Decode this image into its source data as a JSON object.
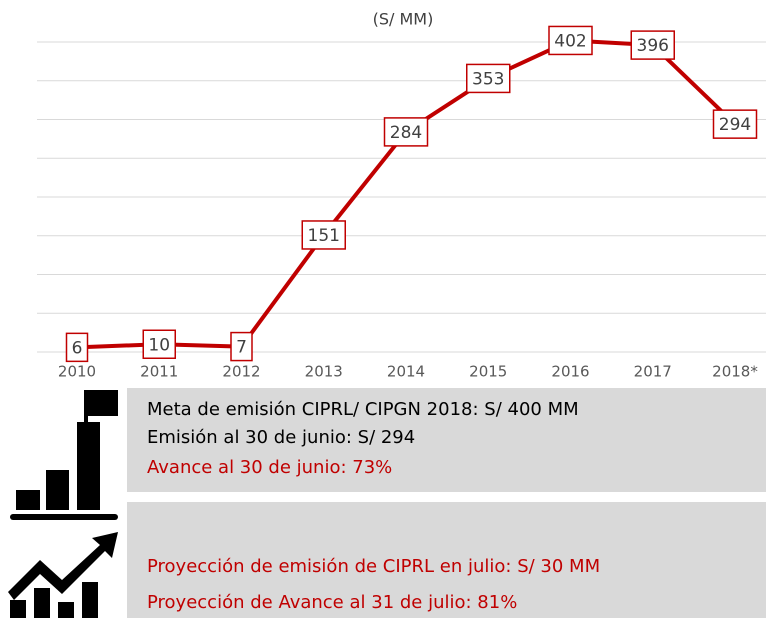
{
  "chart_data": {
    "type": "line",
    "title": "(S/ MM)",
    "categories": [
      "2010",
      "2011",
      "2012",
      "2013",
      "2014",
      "2015",
      "2016",
      "2017",
      "2018*"
    ],
    "values": [
      6,
      10,
      7,
      151,
      284,
      353,
      402,
      396,
      294
    ],
    "color": "#c00000",
    "ylim": [
      0,
      400
    ],
    "yticks": [
      0,
      50,
      100,
      150,
      200,
      250,
      300,
      350,
      400
    ],
    "grid": true
  },
  "panel1": [
    "Meta de emisión CIPRL/ CIPGN 2018: S/ 400 MM",
    "Emisión al 30 de junio: S/ 294",
    "Avance al 30 de junio: 73%"
  ],
  "panel2": [
    "Proyección de emisión de CIPRL en julio: S/ 30 MM",
    "Proyección de Avance al 31 de julio: 81%"
  ]
}
